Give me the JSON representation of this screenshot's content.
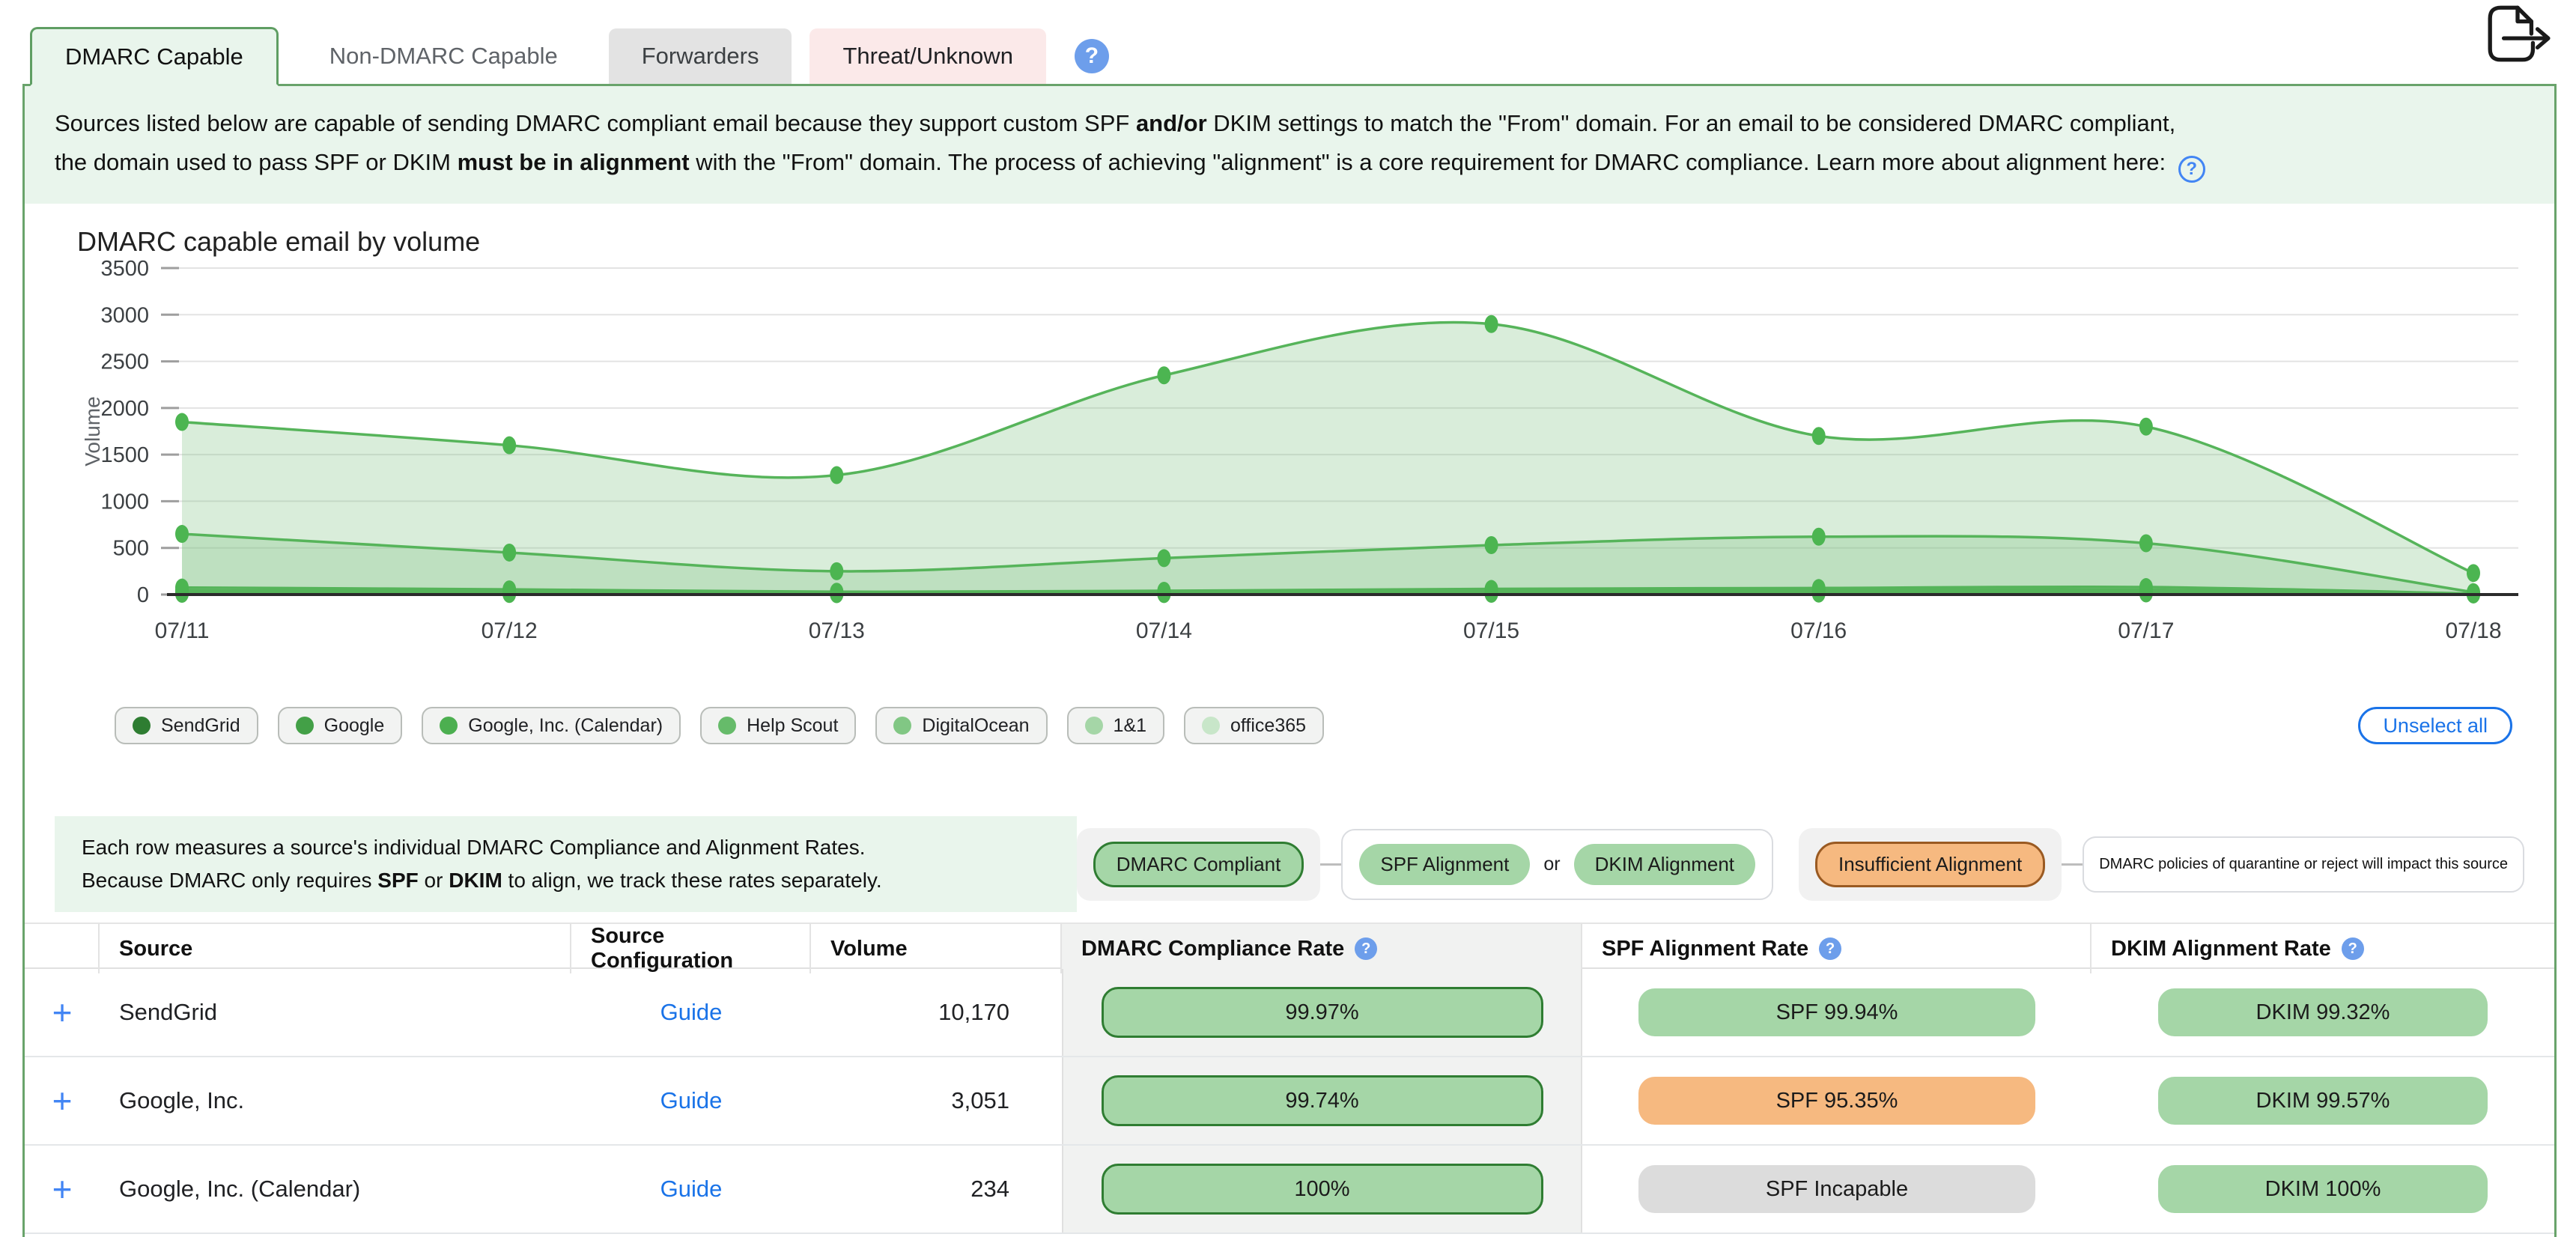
{
  "tabs": [
    {
      "label": "DMARC Capable"
    },
    {
      "label": "Non-DMARC Capable"
    },
    {
      "label": "Forwarders"
    },
    {
      "label": "Threat/Unknown"
    }
  ],
  "description": {
    "line1": [
      {
        "t": "Sources listed below are capable of sending DMARC compliant email because they support custom SPF "
      },
      {
        "t": "and/or",
        "b": true
      },
      {
        "t": " DKIM settings to match the \"From\" domain. For an email to be considered DMARC compliant,"
      }
    ],
    "line2": [
      {
        "t": "the domain used to pass SPF or DKIM "
      },
      {
        "t": "must be in alignment",
        "b": true
      },
      {
        "t": " with the \"From\" domain. The process of achieving \"alignment\" is a core requirement for DMARC compliance. Learn more about alignment here: "
      }
    ]
  },
  "chart_data": {
    "type": "area",
    "title": "DMARC capable email by volume",
    "xlabel": "",
    "ylabel": "Volume",
    "x": [
      "07/11",
      "07/12",
      "07/13",
      "07/14",
      "07/15",
      "07/16",
      "07/17",
      "07/18"
    ],
    "ylim": [
      0,
      3500
    ],
    "yticks": [
      3500,
      3000,
      2500,
      2000,
      1500,
      1000,
      500,
      0
    ],
    "grid": true,
    "legend_position": "bottom",
    "series": [
      {
        "name": "SendGrid",
        "values": [
          1850,
          1600,
          1280,
          2350,
          2900,
          1700,
          1800,
          230
        ]
      },
      {
        "name": "Google",
        "values": [
          650,
          450,
          250,
          390,
          530,
          620,
          550,
          25
        ]
      },
      {
        "name": "Google, Inc. (Calendar)",
        "values": [
          75,
          55,
          30,
          40,
          60,
          70,
          80,
          10
        ]
      },
      {
        "name": "Help Scout",
        "values": [
          45,
          35,
          22,
          28,
          42,
          48,
          52,
          6
        ]
      },
      {
        "name": "DigitalOcean",
        "values": [
          30,
          22,
          14,
          18,
          28,
          32,
          36,
          4
        ]
      },
      {
        "name": "1&1",
        "values": [
          16,
          12,
          8,
          10,
          16,
          20,
          22,
          2
        ]
      },
      {
        "name": "office365",
        "values": [
          8,
          6,
          4,
          5,
          8,
          10,
          12,
          1
        ]
      }
    ],
    "line_color": "#56b45a",
    "fill_color": "rgba(130,195,134,0.30)",
    "marker_color": "#4cb551"
  },
  "chart_legend": {
    "items": [
      {
        "label": "SendGrid",
        "color": "#2e7d32"
      },
      {
        "label": "Google",
        "color": "#43a047"
      },
      {
        "label": "Google, Inc. (Calendar)",
        "color": "#4caf50"
      },
      {
        "label": "Help Scout",
        "color": "#66bb6a"
      },
      {
        "label": "DigitalOcean",
        "color": "#81c784"
      },
      {
        "label": "1&1",
        "color": "#a5d6a7"
      },
      {
        "label": "office365",
        "color": "#c8e6c9"
      }
    ],
    "unselect_label": "Unselect all"
  },
  "info_box": {
    "line1": [
      {
        "t": "Each row measures a source's individual DMARC Compliance and Alignment Rates."
      }
    ],
    "line2": [
      {
        "t": "Because DMARC only requires "
      },
      {
        "t": "SPF",
        "b": true
      },
      {
        "t": " or "
      },
      {
        "t": "DKIM",
        "b": true
      },
      {
        "t": " to align, we track these rates separately."
      }
    ]
  },
  "rate_legend": {
    "compliant_label": "DMARC Compliant",
    "spf_label": "SPF Alignment",
    "or_label": "or",
    "dkim_label": "DKIM Alignment",
    "insufficient_label": "Insufficient Alignment",
    "impact_text": "DMARC policies of quarantine or reject will impact this source"
  },
  "status_colors": {
    "green": "#a5d6a7",
    "orange": "#f6b980",
    "gray": "#dcdcdc",
    "green_border": "#2f7d32",
    "orange_border": "#9a5a22"
  },
  "table": {
    "headers": [
      "Source",
      "Source Configuration",
      "Volume",
      "DMARC Compliance Rate",
      "SPF Alignment Rate",
      "DKIM Alignment Rate"
    ],
    "rows": [
      {
        "source": "SendGrid",
        "config_link": "Guide",
        "volume": "10,170",
        "dmarc": {
          "label": "99.97%",
          "variant": "green-outlined"
        },
        "spf": {
          "label": "SPF 99.94%",
          "variant": "green"
        },
        "dkim": {
          "label": "DKIM 99.32%",
          "variant": "green"
        }
      },
      {
        "source": "Google, Inc.",
        "config_link": "Guide",
        "volume": "3,051",
        "dmarc": {
          "label": "99.74%",
          "variant": "green-outlined"
        },
        "spf": {
          "label": "SPF 95.35%",
          "variant": "orange"
        },
        "dkim": {
          "label": "DKIM 99.57%",
          "variant": "green"
        }
      },
      {
        "source": "Google, Inc. (Calendar)",
        "config_link": "Guide",
        "volume": "234",
        "dmarc": {
          "label": "100%",
          "variant": "green-outlined"
        },
        "spf": {
          "label": "SPF Incapable",
          "variant": "gray"
        },
        "dkim": {
          "label": "DKIM 100%",
          "variant": "green"
        }
      }
    ]
  }
}
